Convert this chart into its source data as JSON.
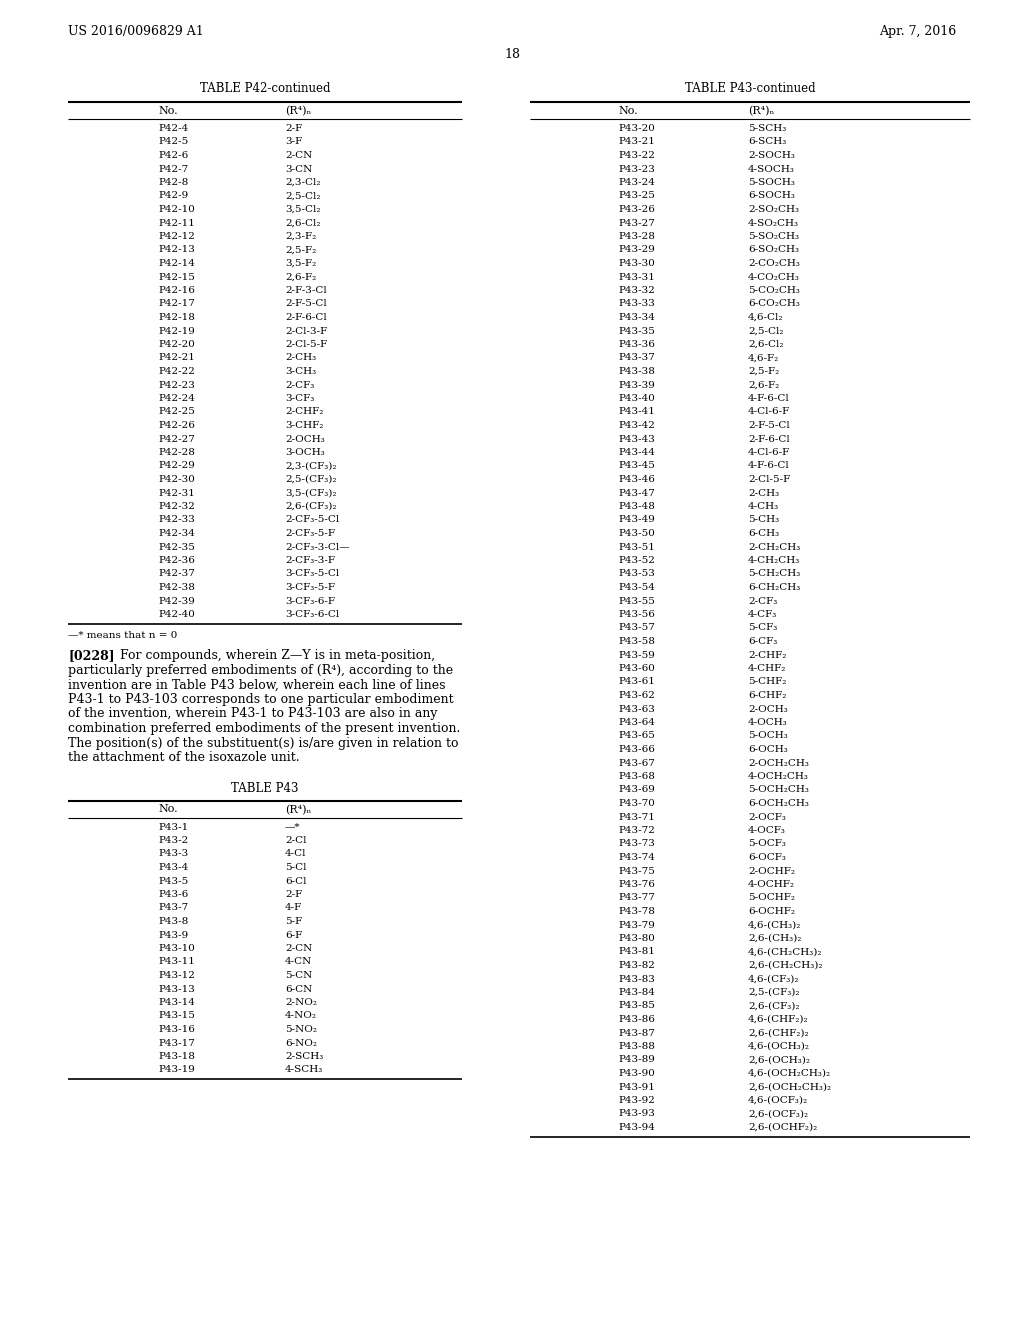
{
  "header_left": "US 2016/0096829 A1",
  "header_right": "Apr. 7, 2016",
  "page_number": "18",
  "table_p42_title": "TABLE P42-continued",
  "table_p43_title": "TABLE P43-continued",
  "table_p42_footnote": "—* means that n = 0",
  "paragraph_number": "[0228]",
  "paragraph_lines": [
    "For compounds, wherein Z—Y is in meta-position,",
    "particularly preferred embodiments of (R⁴), according to the",
    "invention are in Table P43 below, wherein each line of lines",
    "P43-1 to P43-103 corresponds to one particular embodiment",
    "of the invention, wherein P43-1 to P43-103 are also in any",
    "combination preferred embodiments of the present invention.",
    "The position(s) of the substituent(s) is/are given in relation to",
    "the attachment of the isoxazole unit."
  ],
  "table_p43_small_title": "TABLE P43",
  "table_p42_data": [
    [
      "P42-4",
      "2-F"
    ],
    [
      "P42-5",
      "3-F"
    ],
    [
      "P42-6",
      "2-CN"
    ],
    [
      "P42-7",
      "3-CN"
    ],
    [
      "P42-8",
      "2,3-Cl₂"
    ],
    [
      "P42-9",
      "2,5-Cl₂"
    ],
    [
      "P42-10",
      "3,5-Cl₂"
    ],
    [
      "P42-11",
      "2,6-Cl₂"
    ],
    [
      "P42-12",
      "2,3-F₂"
    ],
    [
      "P42-13",
      "2,5-F₂"
    ],
    [
      "P42-14",
      "3,5-F₂"
    ],
    [
      "P42-15",
      "2,6-F₂"
    ],
    [
      "P42-16",
      "2-F-3-Cl"
    ],
    [
      "P42-17",
      "2-F-5-Cl"
    ],
    [
      "P42-18",
      "2-F-6-Cl"
    ],
    [
      "P42-19",
      "2-Cl-3-F"
    ],
    [
      "P42-20",
      "2-Cl-5-F"
    ],
    [
      "P42-21",
      "2-CH₃"
    ],
    [
      "P42-22",
      "3-CH₃"
    ],
    [
      "P42-23",
      "2-CF₃"
    ],
    [
      "P42-24",
      "3-CF₃"
    ],
    [
      "P42-25",
      "2-CHF₂"
    ],
    [
      "P42-26",
      "3-CHF₂"
    ],
    [
      "P42-27",
      "2-OCH₃"
    ],
    [
      "P42-28",
      "3-OCH₃"
    ],
    [
      "P42-29",
      "2,3-(CF₃)₂"
    ],
    [
      "P42-30",
      "2,5-(CF₃)₂"
    ],
    [
      "P42-31",
      "3,5-(CF₃)₂"
    ],
    [
      "P42-32",
      "2,6-(CF₃)₂"
    ],
    [
      "P42-33",
      "2-CF₃-5-Cl"
    ],
    [
      "P42-34",
      "2-CF₃-5-F"
    ],
    [
      "P42-35",
      "2-CF₃-3-Cl—"
    ],
    [
      "P42-36",
      "2-CF₃-3-F"
    ],
    [
      "P42-37",
      "3-CF₃-5-Cl"
    ],
    [
      "P42-38",
      "3-CF₃-5-F"
    ],
    [
      "P42-39",
      "3-CF₃-6-F"
    ],
    [
      "P42-40",
      "3-CF₃-6-Cl"
    ]
  ],
  "table_p43_data_left": [
    [
      "P43-1",
      "—*"
    ],
    [
      "P43-2",
      "2-Cl"
    ],
    [
      "P43-3",
      "4-Cl"
    ],
    [
      "P43-4",
      "5-Cl"
    ],
    [
      "P43-5",
      "6-Cl"
    ],
    [
      "P43-6",
      "2-F"
    ],
    [
      "P43-7",
      "4-F"
    ],
    [
      "P43-8",
      "5-F"
    ],
    [
      "P43-9",
      "6-F"
    ],
    [
      "P43-10",
      "2-CN"
    ],
    [
      "P43-11",
      "4-CN"
    ],
    [
      "P43-12",
      "5-CN"
    ],
    [
      "P43-13",
      "6-CN"
    ],
    [
      "P43-14",
      "2-NO₂"
    ],
    [
      "P43-15",
      "4-NO₂"
    ],
    [
      "P43-16",
      "5-NO₂"
    ],
    [
      "P43-17",
      "6-NO₂"
    ],
    [
      "P43-18",
      "2-SCH₃"
    ],
    [
      "P43-19",
      "4-SCH₃"
    ]
  ],
  "table_p43_data_right": [
    [
      "P43-20",
      "5-SCH₃"
    ],
    [
      "P43-21",
      "6-SCH₃"
    ],
    [
      "P43-22",
      "2-SOCH₃"
    ],
    [
      "P43-23",
      "4-SOCH₃"
    ],
    [
      "P43-24",
      "5-SOCH₃"
    ],
    [
      "P43-25",
      "6-SOCH₃"
    ],
    [
      "P43-26",
      "2-SO₂CH₃"
    ],
    [
      "P43-27",
      "4-SO₂CH₃"
    ],
    [
      "P43-28",
      "5-SO₂CH₃"
    ],
    [
      "P43-29",
      "6-SO₂CH₃"
    ],
    [
      "P43-30",
      "2-CO₂CH₃"
    ],
    [
      "P43-31",
      "4-CO₂CH₃"
    ],
    [
      "P43-32",
      "5-CO₂CH₃"
    ],
    [
      "P43-33",
      "6-CO₂CH₃"
    ],
    [
      "P43-34",
      "4,6-Cl₂"
    ],
    [
      "P43-35",
      "2,5-Cl₂"
    ],
    [
      "P43-36",
      "2,6-Cl₂"
    ],
    [
      "P43-37",
      "4,6-F₂"
    ],
    [
      "P43-38",
      "2,5-F₂"
    ],
    [
      "P43-39",
      "2,6-F₂"
    ],
    [
      "P43-40",
      "4-F-6-Cl"
    ],
    [
      "P43-41",
      "4-Cl-6-F"
    ],
    [
      "P43-42",
      "2-F-5-Cl"
    ],
    [
      "P43-43",
      "2-F-6-Cl"
    ],
    [
      "P43-44",
      "4-Cl-6-F"
    ],
    [
      "P43-45",
      "4-F-6-Cl"
    ],
    [
      "P43-46",
      "2-Cl-5-F"
    ],
    [
      "P43-47",
      "2-CH₃"
    ],
    [
      "P43-48",
      "4-CH₃"
    ],
    [
      "P43-49",
      "5-CH₃"
    ],
    [
      "P43-50",
      "6-CH₃"
    ],
    [
      "P43-51",
      "2-CH₂CH₃"
    ],
    [
      "P43-52",
      "4-CH₂CH₃"
    ],
    [
      "P43-53",
      "5-CH₂CH₃"
    ],
    [
      "P43-54",
      "6-CH₂CH₃"
    ],
    [
      "P43-55",
      "2-CF₃"
    ],
    [
      "P43-56",
      "4-CF₃"
    ],
    [
      "P43-57",
      "5-CF₃"
    ],
    [
      "P43-58",
      "6-CF₃"
    ],
    [
      "P43-59",
      "2-CHF₂"
    ],
    [
      "P43-60",
      "4-CHF₂"
    ],
    [
      "P43-61",
      "5-CHF₂"
    ],
    [
      "P43-62",
      "6-CHF₂"
    ],
    [
      "P43-63",
      "2-OCH₃"
    ],
    [
      "P43-64",
      "4-OCH₃"
    ],
    [
      "P43-65",
      "5-OCH₃"
    ],
    [
      "P43-66",
      "6-OCH₃"
    ],
    [
      "P43-67",
      "2-OCH₂CH₃"
    ],
    [
      "P43-68",
      "4-OCH₂CH₃"
    ],
    [
      "P43-69",
      "5-OCH₂CH₃"
    ],
    [
      "P43-70",
      "6-OCH₂CH₃"
    ],
    [
      "P43-71",
      "2-OCF₃"
    ],
    [
      "P43-72",
      "4-OCF₃"
    ],
    [
      "P43-73",
      "5-OCF₃"
    ],
    [
      "P43-74",
      "6-OCF₃"
    ],
    [
      "P43-75",
      "2-OCHF₂"
    ],
    [
      "P43-76",
      "4-OCHF₂"
    ],
    [
      "P43-77",
      "5-OCHF₂"
    ],
    [
      "P43-78",
      "6-OCHF₂"
    ],
    [
      "P43-79",
      "4,6-(CH₃)₂"
    ],
    [
      "P43-80",
      "2,6-(CH₃)₂"
    ],
    [
      "P43-81",
      "4,6-(CH₂CH₃)₂"
    ],
    [
      "P43-82",
      "2,6-(CH₂CH₃)₂"
    ],
    [
      "P43-83",
      "4,6-(CF₃)₂"
    ],
    [
      "P43-84",
      "2,5-(CF₃)₂"
    ],
    [
      "P43-85",
      "2,6-(CF₃)₂"
    ],
    [
      "P43-86",
      "4,6-(CHF₂)₂"
    ],
    [
      "P43-87",
      "2,6-(CHF₂)₂"
    ],
    [
      "P43-88",
      "4,6-(OCH₃)₂"
    ],
    [
      "P43-89",
      "2,6-(OCH₃)₂"
    ],
    [
      "P43-90",
      "4,6-(OCH₂CH₃)₂"
    ],
    [
      "P43-91",
      "2,6-(OCH₂CH₃)₂"
    ],
    [
      "P43-92",
      "4,6-(OCF₃)₂"
    ],
    [
      "P43-93",
      "2,6-(OCF₃)₂"
    ],
    [
      "P43-94",
      "2,6-(OCHF₂)₂"
    ]
  ],
  "background_color": "#ffffff"
}
